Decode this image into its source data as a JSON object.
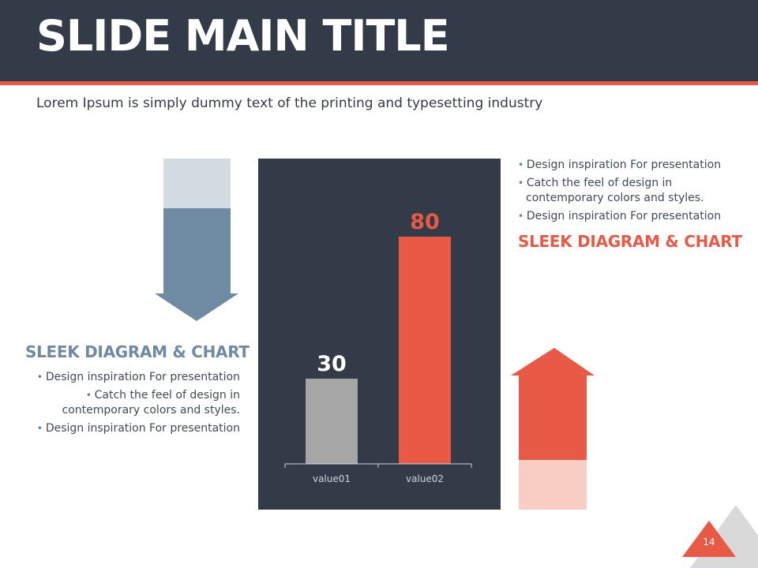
{
  "slide": {
    "title": "SLIDE MAIN TITLE",
    "subtitle": "Lorem Ipsum is simply dummy text of the printing and typesetting industry",
    "page_number": "14"
  },
  "right_block": {
    "bullets": [
      "Design inspiration For presentation",
      "Catch the feel of design in contemporary colors and styles.",
      "Design inspiration For presentation"
    ],
    "heading": "SLEEK DIAGRAM & CHART"
  },
  "left_block": {
    "heading": "SLEEK DIAGRAM & CHART",
    "bullets": [
      "Design inspiration For presentation",
      "Catch the feel of design in contemporary colors and styles.",
      "Design inspiration For presentation"
    ]
  },
  "colors": {
    "header_bg": "#333a48",
    "accent": "#e85a45",
    "steel": "#6f8aa3",
    "steel_light": "#d3dbe3",
    "accent_light": "#f7cdc4",
    "bar_gray": "#a6a6a6",
    "panel": "#333a48"
  },
  "arrows": {
    "down_fill_fraction": 0.7,
    "up_fill_fraction": 0.7
  },
  "chart_data": {
    "type": "bar",
    "categories": [
      "value01",
      "value02"
    ],
    "values": [
      30,
      80
    ],
    "data_labels": [
      "30",
      "80"
    ],
    "bar_colors": [
      "#a6a6a6",
      "#e85a45"
    ],
    "ylim": [
      0,
      100
    ],
    "title": "",
    "xlabel": "",
    "ylabel": "",
    "grid": false,
    "legend": "none"
  }
}
